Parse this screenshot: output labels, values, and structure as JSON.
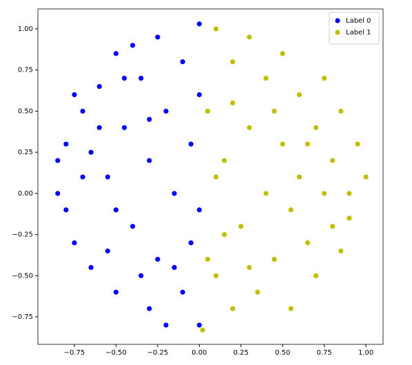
{
  "chart_data": {
    "type": "scatter",
    "xlim": [
      -0.969,
      1.103
    ],
    "ylim": [
      -0.917,
      1.121
    ],
    "xticks": [
      {
        "value": -0.75,
        "label": "−0.75"
      },
      {
        "value": -0.5,
        "label": "−0.50"
      },
      {
        "value": -0.25,
        "label": "−0.25"
      },
      {
        "value": 0,
        "label": "0.00"
      },
      {
        "value": 0.25,
        "label": "0.25"
      },
      {
        "value": 0.5,
        "label": "0.50"
      },
      {
        "value": 0.75,
        "label": "0.75"
      },
      {
        "value": 1,
        "label": "1.00"
      }
    ],
    "yticks": [
      {
        "value": -0.75,
        "label": "−0.75"
      },
      {
        "value": -0.5,
        "label": "−0.50"
      },
      {
        "value": -0.25,
        "label": "−0.25"
      },
      {
        "value": 0,
        "label": "0.00"
      },
      {
        "value": 0.25,
        "label": "0.25"
      },
      {
        "value": 0.5,
        "label": "0.50"
      },
      {
        "value": 0.75,
        "label": "0.75"
      },
      {
        "value": 1,
        "label": "1.00"
      }
    ],
    "legend": "upper right",
    "series": [
      {
        "name": "Label 0",
        "color": "#0000ff",
        "x": [
          -0.85,
          -0.8,
          -0.75,
          -0.7,
          -0.65,
          -0.6,
          -0.55,
          -0.5,
          -0.5,
          -0.45,
          -0.4,
          -0.4,
          -0.35,
          -0.3,
          -0.3,
          -0.25,
          -0.25,
          -0.2,
          -0.2,
          -0.15,
          -0.1,
          -0.1,
          -0.05,
          -0.05,
          0.0,
          0.0,
          0.0,
          0.0,
          -0.7,
          -0.65,
          -0.8,
          -0.55,
          -0.35,
          -0.15,
          -0.6,
          -0.45,
          -0.3,
          -0.75,
          -0.85,
          -0.5
        ],
        "values": [
          0.0,
          0.3,
          -0.3,
          0.5,
          -0.45,
          0.65,
          0.1,
          0.85,
          -0.6,
          0.4,
          -0.2,
          0.9,
          0.7,
          -0.7,
          0.2,
          0.95,
          -0.4,
          0.5,
          -0.8,
          0.0,
          0.8,
          -0.6,
          0.3,
          -0.3,
          1.03,
          0.6,
          -0.1,
          -0.8,
          0.1,
          0.25,
          -0.1,
          -0.35,
          -0.5,
          -0.45,
          0.4,
          0.7,
          0.45,
          0.6,
          0.2,
          -0.1
        ]
      },
      {
        "name": "Label 1",
        "color": "#bfbf00",
        "x": [
          0.02,
          0.05,
          0.1,
          0.1,
          0.15,
          0.2,
          0.2,
          0.25,
          0.3,
          0.3,
          0.35,
          0.4,
          0.4,
          0.45,
          0.5,
          0.5,
          0.55,
          0.6,
          0.6,
          0.65,
          0.7,
          0.7,
          0.75,
          0.8,
          0.8,
          0.85,
          0.9,
          0.95,
          1.0,
          0.85,
          0.05,
          0.1,
          0.3,
          0.45,
          0.55,
          0.65,
          0.75,
          0.2,
          0.15,
          0.9
        ],
        "values": [
          -0.83,
          0.5,
          1.0,
          -0.5,
          0.2,
          -0.7,
          0.8,
          -0.2,
          0.95,
          0.4,
          -0.6,
          0.0,
          0.7,
          -0.4,
          0.85,
          0.3,
          -0.7,
          0.1,
          0.6,
          -0.3,
          0.4,
          -0.5,
          0.7,
          0.2,
          -0.2,
          0.5,
          0.0,
          0.3,
          0.1,
          -0.35,
          -0.4,
          0.1,
          -0.45,
          0.5,
          -0.1,
          0.3,
          0.0,
          0.55,
          -0.25,
          -0.15
        ]
      }
    ]
  }
}
